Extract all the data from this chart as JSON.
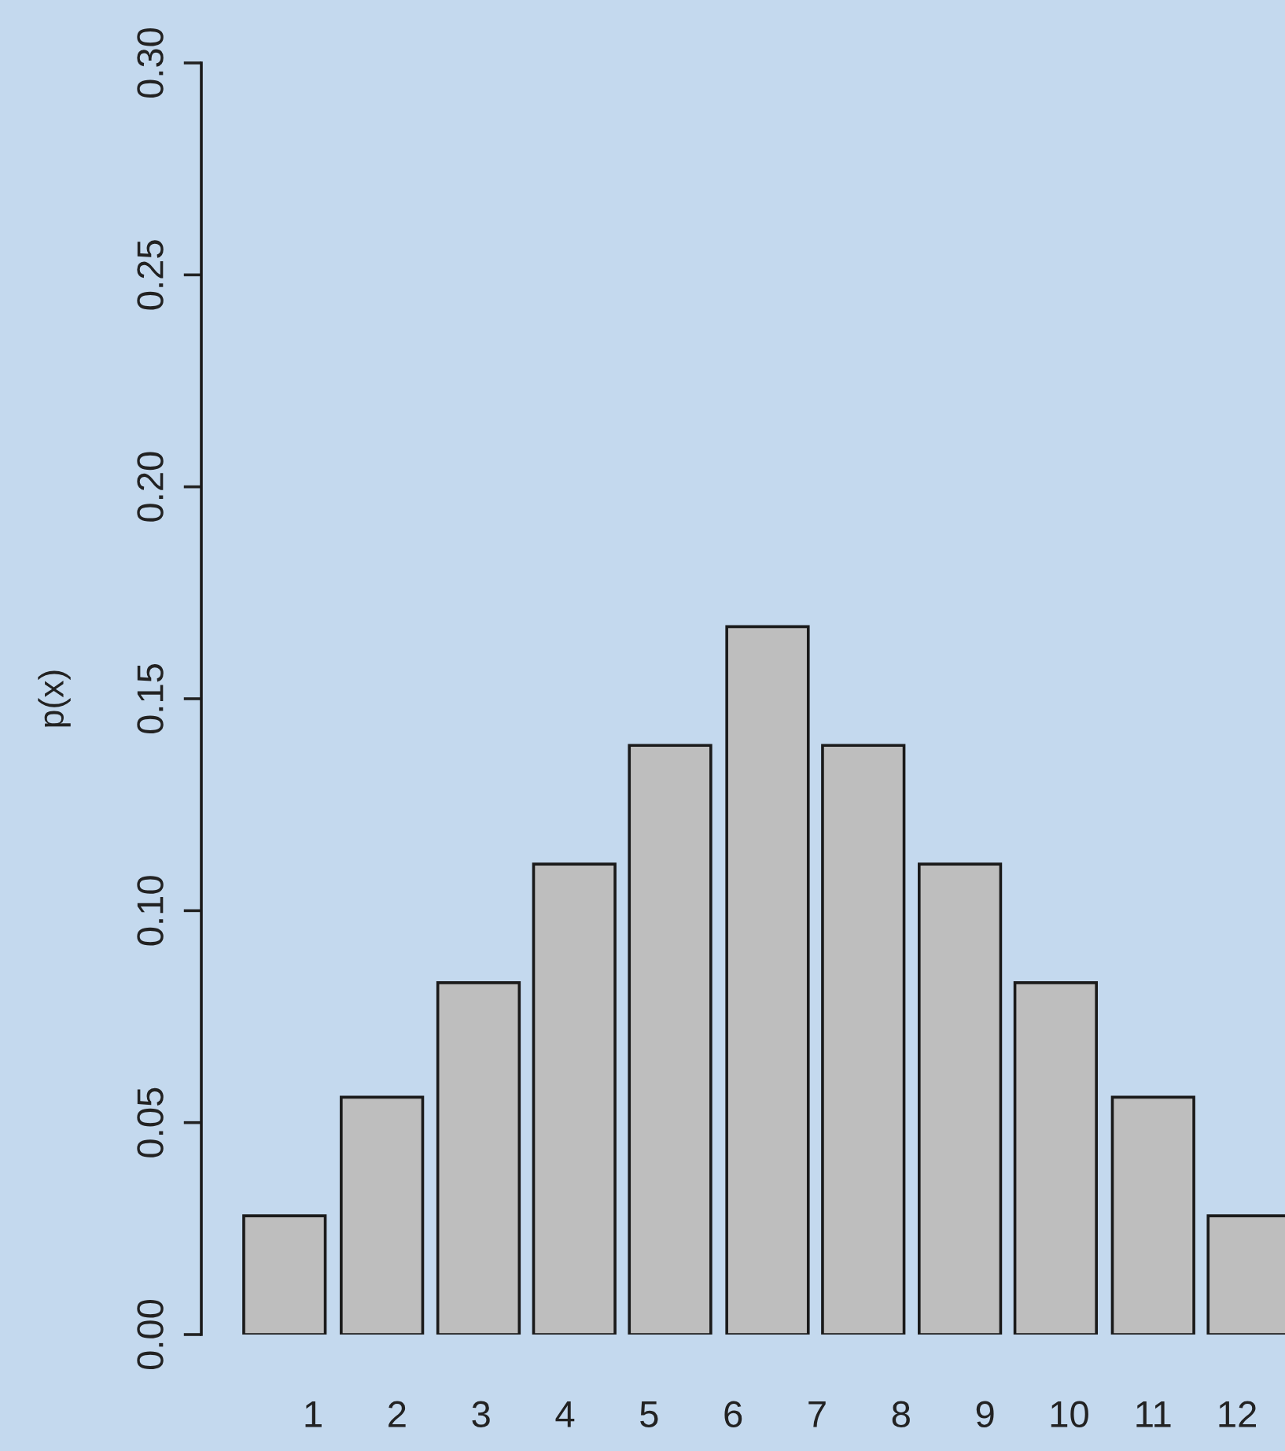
{
  "chart_data": {
    "type": "bar",
    "ylabel": "p(x)",
    "x": [
      0.66,
      1.82,
      2.97,
      4.11,
      5.25,
      6.41,
      7.55,
      8.7,
      9.84,
      11.0,
      12.14
    ],
    "values": [
      0.028,
      0.056,
      0.083,
      0.111,
      0.139,
      0.167,
      0.139,
      0.111,
      0.083,
      0.056,
      0.028
    ],
    "color": "#bebebe",
    "xlim": [
      -0.33,
      12.57
    ],
    "xticks": [
      1,
      2,
      3,
      4,
      5,
      6,
      7,
      8,
      9,
      10,
      11,
      12
    ],
    "ylim": [
      0,
      0.3
    ],
    "yticks": [
      {
        "value": 0,
        "label": "0.00"
      },
      {
        "value": 0.05,
        "label": "0.05"
      },
      {
        "value": 0.1,
        "label": "0.10"
      },
      {
        "value": 0.15,
        "label": "0.15"
      },
      {
        "value": 0.2,
        "label": "0.20"
      },
      {
        "value": 0.25,
        "label": "0.25"
      },
      {
        "value": 0.3,
        "label": "0.30"
      }
    ],
    "grid": false,
    "legend": false
  }
}
